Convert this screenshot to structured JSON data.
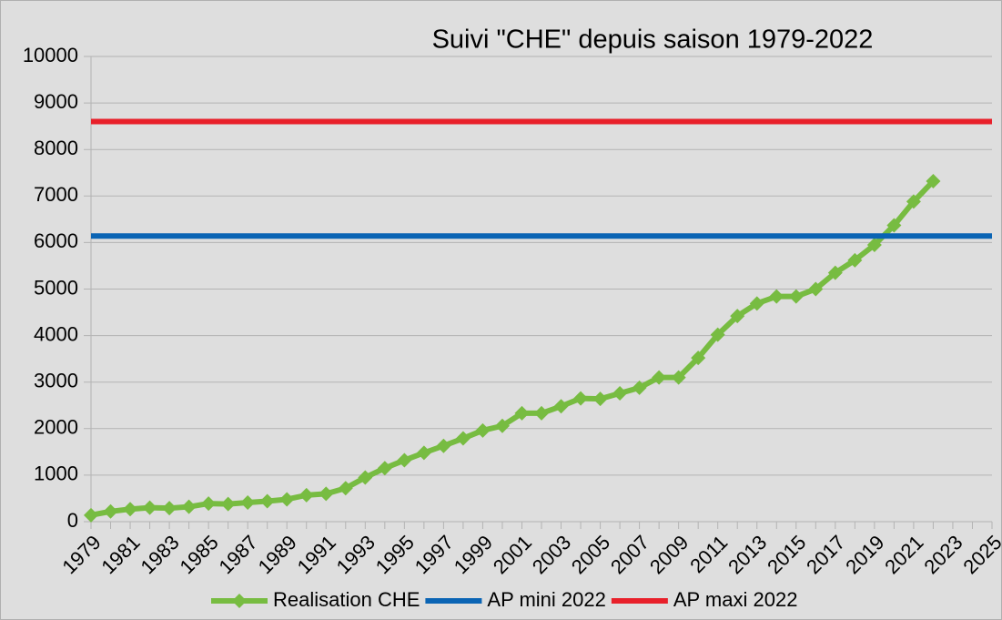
{
  "chart_data": {
    "type": "line",
    "title": "Suivi \"CHE\" depuis saison 1979-2022",
    "categories": [
      "1979",
      null,
      "1981",
      null,
      "1983",
      null,
      "1985",
      null,
      "1987",
      null,
      "1989",
      null,
      "1991",
      null,
      "1993",
      null,
      "1995",
      null,
      "1997",
      null,
      "1999",
      null,
      "2001",
      null,
      "2003",
      null,
      "2005",
      null,
      "2007",
      null,
      "2009",
      null,
      "2011",
      null,
      "2013",
      null,
      "2015",
      null,
      "2017",
      null,
      "2019",
      null,
      "2021",
      null,
      "2023",
      null,
      "2025"
    ],
    "series": [
      {
        "name": "Realisation CHE",
        "color": "#77bc41",
        "marker": "diamond",
        "values": [
          140,
          220,
          270,
          300,
          290,
          320,
          390,
          380,
          410,
          440,
          480,
          570,
          600,
          720,
          950,
          1150,
          1320,
          1480,
          1630,
          1790,
          1960,
          2060,
          2330,
          2330,
          2480,
          2650,
          2640,
          2760,
          2880,
          3100,
          3100,
          3520,
          4020,
          4420,
          4690,
          4840,
          4840,
          5000,
          5350,
          5620,
          5950,
          6370,
          6880,
          7320,
          null,
          null,
          null
        ]
      },
      {
        "name": "AP mini 2022",
        "color": "#0a64b4",
        "values": [
          6140,
          6140,
          6140,
          6140,
          6140,
          6140,
          6140,
          6140,
          6140,
          6140,
          6140,
          6140,
          6140,
          6140,
          6140,
          6140,
          6140,
          6140,
          6140,
          6140,
          6140,
          6140,
          6140,
          6140,
          6140,
          6140,
          6140,
          6140,
          6140,
          6140,
          6140,
          6140,
          6140,
          6140,
          6140,
          6140,
          6140,
          6140,
          6140,
          6140,
          6140,
          6140,
          6140,
          6140,
          6140,
          6140,
          6140
        ]
      },
      {
        "name": "AP maxi 2022",
        "color": "#e8202a",
        "values": [
          8600,
          8600,
          8600,
          8600,
          8600,
          8600,
          8600,
          8600,
          8600,
          8600,
          8600,
          8600,
          8600,
          8600,
          8600,
          8600,
          8600,
          8600,
          8600,
          8600,
          8600,
          8600,
          8600,
          8600,
          8600,
          8600,
          8600,
          8600,
          8600,
          8600,
          8600,
          8600,
          8600,
          8600,
          8600,
          8600,
          8600,
          8600,
          8600,
          8600,
          8600,
          8600,
          8600,
          8600,
          8600,
          8600,
          8600
        ]
      }
    ],
    "ylim": [
      0,
      10000
    ],
    "yticks": [
      0,
      1000,
      2000,
      3000,
      4000,
      5000,
      6000,
      7000,
      8000,
      9000,
      10000
    ],
    "grid": true,
    "legend": "bottom"
  }
}
